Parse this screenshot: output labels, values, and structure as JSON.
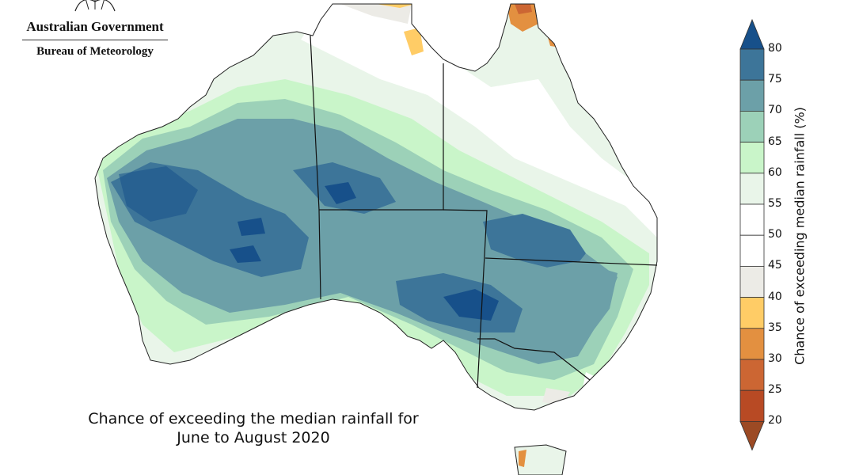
{
  "header": {
    "government": "Australian Government",
    "bureau": "Bureau of Meteorology"
  },
  "map": {
    "caption_line1": "Chance of exceeding the median rainfall for",
    "caption_line2": "June to August 2020"
  },
  "legend": {
    "axis_label": "Chance of exceeding median rainfall (%)",
    "ticks": [
      "80",
      "75",
      "70",
      "65",
      "60",
      "55",
      "50",
      "45",
      "40",
      "35",
      "30",
      "25",
      "20"
    ],
    "bins": [
      {
        "range": ">80",
        "color": "#17508a"
      },
      {
        "range": "75-80",
        "color": "#3d7599"
      },
      {
        "range": "70-75",
        "color": "#6ca0a8"
      },
      {
        "range": "65-70",
        "color": "#9cd1b8"
      },
      {
        "range": "60-65",
        "color": "#c9f5c9"
      },
      {
        "range": "55-60",
        "color": "#e9f5e9"
      },
      {
        "range": "50-55",
        "color": "#ffffff"
      },
      {
        "range": "45-50",
        "color": "#ffffff"
      },
      {
        "range": "40-45",
        "color": "#ecebe6"
      },
      {
        "range": "35-40",
        "color": "#ffcc66"
      },
      {
        "range": "30-35",
        "color": "#e39040"
      },
      {
        "range": "25-30",
        "color": "#cc6633"
      },
      {
        "range": "20-25",
        "color": "#b84a24"
      },
      {
        "range": "<20",
        "color": "#9c4a24"
      }
    ]
  }
}
